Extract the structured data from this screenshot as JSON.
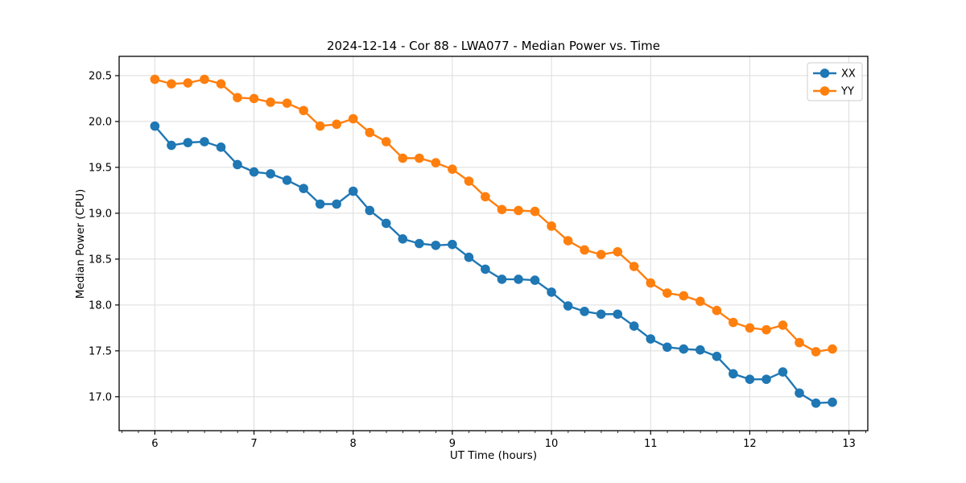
{
  "chart_data": {
    "type": "line",
    "title": "2024-12-14 - Cor 88 - LWA077 - Median Power vs. Time",
    "xlabel": "UT Time (hours)",
    "ylabel": "Median Power (CPU)",
    "x": [
      6.0,
      6.167,
      6.333,
      6.5,
      6.667,
      6.833,
      7.0,
      7.167,
      7.333,
      7.5,
      7.667,
      7.833,
      8.0,
      8.167,
      8.333,
      8.5,
      8.667,
      8.833,
      9.0,
      9.167,
      9.333,
      9.5,
      9.667,
      9.833,
      10.0,
      10.167,
      10.333,
      10.5,
      10.667,
      10.833,
      11.0,
      11.167,
      11.333,
      11.5,
      11.667,
      11.833,
      12.0,
      12.167,
      12.333,
      12.5,
      12.667,
      12.833
    ],
    "series": [
      {
        "name": "XX",
        "color": "#1f77b4",
        "values": [
          19.95,
          19.74,
          19.77,
          19.78,
          19.72,
          19.53,
          19.45,
          19.43,
          19.36,
          19.27,
          19.1,
          19.1,
          19.24,
          19.03,
          18.89,
          18.72,
          18.67,
          18.65,
          18.66,
          18.52,
          18.39,
          18.28,
          18.28,
          18.27,
          18.14,
          17.99,
          17.93,
          17.9,
          17.9,
          17.77,
          17.63,
          17.54,
          17.52,
          17.51,
          17.44,
          17.25,
          17.19,
          17.19,
          17.27,
          17.04,
          16.93,
          16.94
        ]
      },
      {
        "name": "YY",
        "color": "#ff7f0e",
        "values": [
          20.46,
          20.41,
          20.42,
          20.46,
          20.41,
          20.26,
          20.25,
          20.21,
          20.2,
          20.12,
          19.95,
          19.97,
          20.03,
          19.88,
          19.78,
          19.6,
          19.6,
          19.55,
          19.48,
          19.35,
          19.18,
          19.04,
          19.03,
          19.02,
          18.86,
          18.7,
          18.6,
          18.55,
          18.58,
          18.42,
          18.24,
          18.13,
          18.1,
          18.04,
          17.94,
          17.81,
          17.75,
          17.73,
          17.78,
          17.59,
          17.49,
          17.52
        ]
      }
    ],
    "xlim": [
      5.64,
      13.19
    ],
    "ylim": [
      16.63,
      20.71
    ],
    "xticks": [
      6,
      7,
      8,
      9,
      10,
      11,
      12,
      13
    ],
    "yticks": [
      17.0,
      17.5,
      18.0,
      18.5,
      19.0,
      19.5,
      20.0,
      20.5
    ],
    "minor_x_step": 0.1667,
    "grid": true,
    "grid_color": "#dcdcdc",
    "background_color": "#ffffff",
    "legend_position": "upper right",
    "legend_labels": [
      "XX",
      "YY"
    ]
  }
}
